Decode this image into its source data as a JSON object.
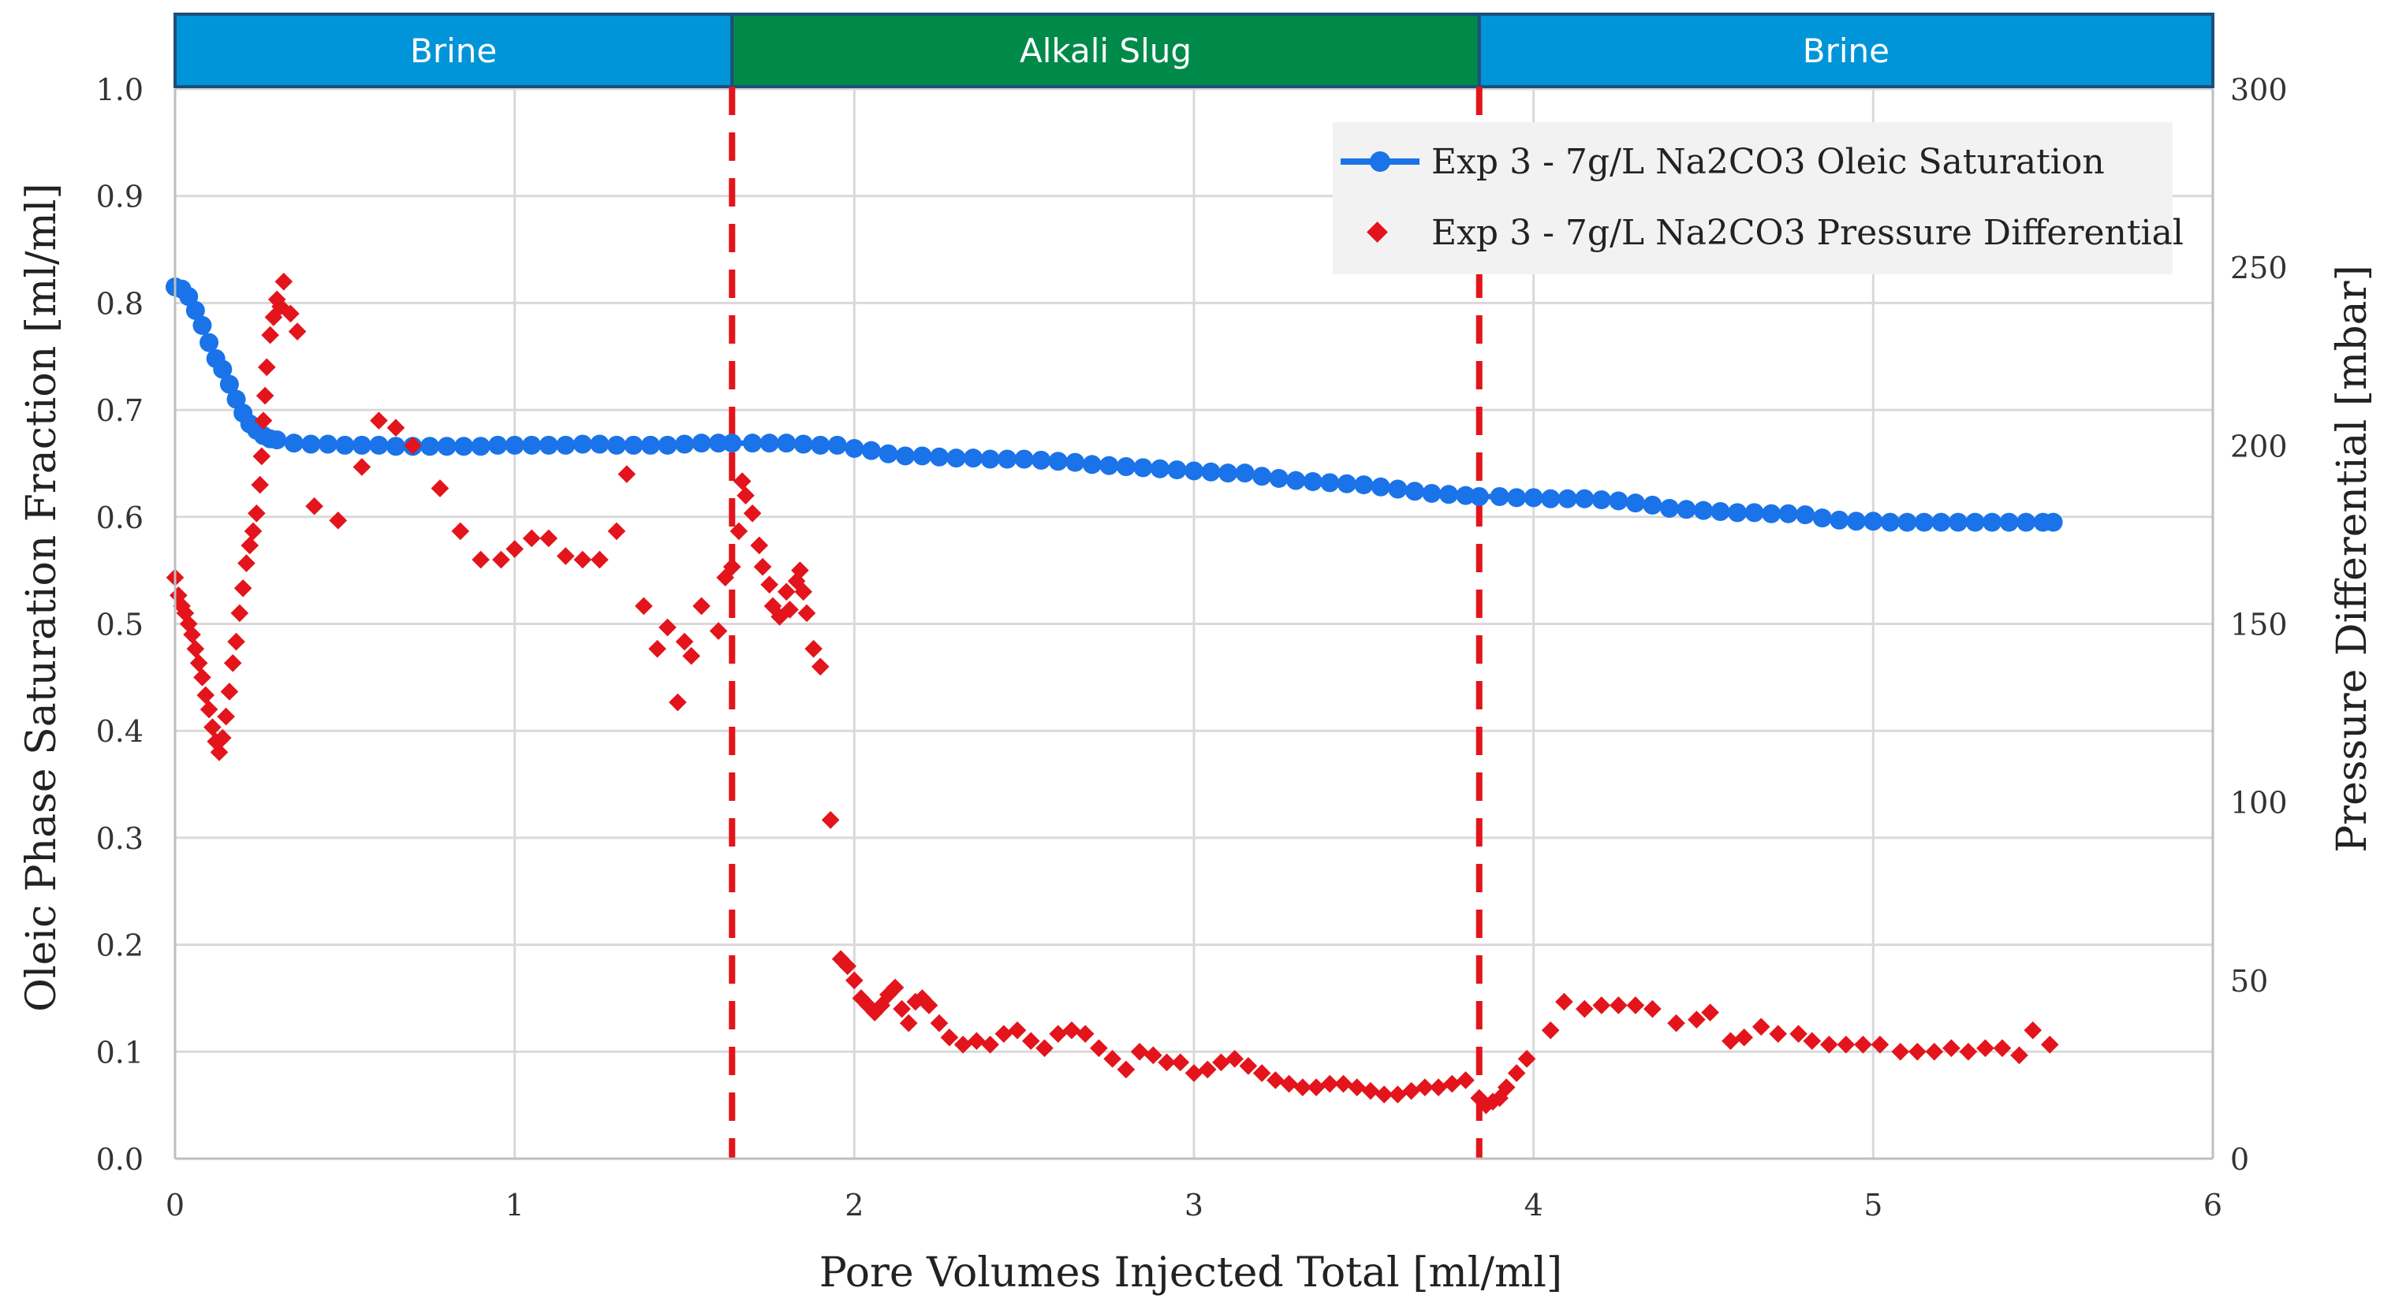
{
  "chart_data": {
    "type": "scatter",
    "xlabel": "Pore Volumes Injected Total [ml/ml]",
    "ylabel": "Oleic Phase Saturation Fraction [ml/ml]",
    "y2label": "Pressure Differential [mbar]",
    "xlim": [
      0,
      6
    ],
    "ylim": [
      0,
      1.0
    ],
    "y2lim": [
      0,
      300
    ],
    "x_ticks": [
      "0",
      "1",
      "2",
      "3",
      "4",
      "5",
      "6"
    ],
    "y_ticks": [
      "0.0",
      "0.1",
      "0.2",
      "0.3",
      "0.4",
      "0.5",
      "0.6",
      "0.7",
      "0.8",
      "0.9",
      "1.0"
    ],
    "y2_ticks": [
      "0",
      "50",
      "100",
      "150",
      "200",
      "250",
      "300"
    ],
    "grid": true,
    "legend_position": "top-right",
    "phases": [
      {
        "label": "Brine",
        "x_start": 0,
        "x_end": 1.64,
        "color": "#0094d8"
      },
      {
        "label": "Alkali Slug",
        "x_start": 1.64,
        "x_end": 3.84,
        "color": "#008a4a"
      },
      {
        "label": "Brine",
        "x_start": 3.84,
        "x_end": 6.0,
        "color": "#0094d8"
      }
    ],
    "phase_boundaries": [
      1.64,
      3.84
    ],
    "series": [
      {
        "name": "Exp 3 - 7g/L Na2CO3 Oleic Saturation",
        "axis": "left",
        "color": "#1a73e8",
        "marker": "circle",
        "line": true,
        "points": [
          [
            0.0,
            0.815
          ],
          [
            0.02,
            0.813
          ],
          [
            0.04,
            0.806
          ],
          [
            0.06,
            0.793
          ],
          [
            0.08,
            0.779
          ],
          [
            0.1,
            0.763
          ],
          [
            0.12,
            0.748
          ],
          [
            0.14,
            0.738
          ],
          [
            0.16,
            0.724
          ],
          [
            0.18,
            0.71
          ],
          [
            0.2,
            0.697
          ],
          [
            0.22,
            0.687
          ],
          [
            0.24,
            0.681
          ],
          [
            0.26,
            0.676
          ],
          [
            0.28,
            0.673
          ],
          [
            0.3,
            0.672
          ],
          [
            0.35,
            0.669
          ],
          [
            0.4,
            0.668
          ],
          [
            0.45,
            0.668
          ],
          [
            0.5,
            0.667
          ],
          [
            0.55,
            0.667
          ],
          [
            0.6,
            0.667
          ],
          [
            0.65,
            0.666
          ],
          [
            0.7,
            0.666
          ],
          [
            0.75,
            0.666
          ],
          [
            0.8,
            0.666
          ],
          [
            0.85,
            0.666
          ],
          [
            0.9,
            0.666
          ],
          [
            0.95,
            0.667
          ],
          [
            1.0,
            0.667
          ],
          [
            1.05,
            0.667
          ],
          [
            1.1,
            0.667
          ],
          [
            1.15,
            0.667
          ],
          [
            1.2,
            0.668
          ],
          [
            1.25,
            0.668
          ],
          [
            1.3,
            0.667
          ],
          [
            1.35,
            0.667
          ],
          [
            1.4,
            0.667
          ],
          [
            1.45,
            0.667
          ],
          [
            1.5,
            0.668
          ],
          [
            1.55,
            0.669
          ],
          [
            1.6,
            0.669
          ],
          [
            1.64,
            0.669
          ],
          [
            1.7,
            0.669
          ],
          [
            1.75,
            0.669
          ],
          [
            1.8,
            0.669
          ],
          [
            1.85,
            0.668
          ],
          [
            1.9,
            0.667
          ],
          [
            1.95,
            0.667
          ],
          [
            2.0,
            0.664
          ],
          [
            2.05,
            0.662
          ],
          [
            2.1,
            0.659
          ],
          [
            2.15,
            0.657
          ],
          [
            2.2,
            0.657
          ],
          [
            2.25,
            0.656
          ],
          [
            2.3,
            0.655
          ],
          [
            2.35,
            0.655
          ],
          [
            2.4,
            0.654
          ],
          [
            2.45,
            0.654
          ],
          [
            2.5,
            0.654
          ],
          [
            2.55,
            0.653
          ],
          [
            2.6,
            0.652
          ],
          [
            2.65,
            0.651
          ],
          [
            2.7,
            0.649
          ],
          [
            2.75,
            0.648
          ],
          [
            2.8,
            0.647
          ],
          [
            2.85,
            0.646
          ],
          [
            2.9,
            0.645
          ],
          [
            2.95,
            0.644
          ],
          [
            3.0,
            0.643
          ],
          [
            3.05,
            0.642
          ],
          [
            3.1,
            0.641
          ],
          [
            3.15,
            0.641
          ],
          [
            3.2,
            0.638
          ],
          [
            3.25,
            0.636
          ],
          [
            3.3,
            0.634
          ],
          [
            3.35,
            0.633
          ],
          [
            3.4,
            0.632
          ],
          [
            3.45,
            0.631
          ],
          [
            3.5,
            0.63
          ],
          [
            3.55,
            0.628
          ],
          [
            3.6,
            0.626
          ],
          [
            3.65,
            0.624
          ],
          [
            3.7,
            0.622
          ],
          [
            3.75,
            0.621
          ],
          [
            3.8,
            0.62
          ],
          [
            3.84,
            0.619
          ],
          [
            3.9,
            0.619
          ],
          [
            3.95,
            0.618
          ],
          [
            4.0,
            0.618
          ],
          [
            4.05,
            0.617
          ],
          [
            4.1,
            0.617
          ],
          [
            4.15,
            0.617
          ],
          [
            4.2,
            0.616
          ],
          [
            4.25,
            0.615
          ],
          [
            4.3,
            0.613
          ],
          [
            4.35,
            0.611
          ],
          [
            4.4,
            0.608
          ],
          [
            4.45,
            0.607
          ],
          [
            4.5,
            0.606
          ],
          [
            4.55,
            0.605
          ],
          [
            4.6,
            0.604
          ],
          [
            4.65,
            0.604
          ],
          [
            4.7,
            0.603
          ],
          [
            4.75,
            0.603
          ],
          [
            4.8,
            0.602
          ],
          [
            4.85,
            0.599
          ],
          [
            4.9,
            0.597
          ],
          [
            4.95,
            0.596
          ],
          [
            5.0,
            0.596
          ],
          [
            5.05,
            0.595
          ],
          [
            5.1,
            0.595
          ],
          [
            5.15,
            0.595
          ],
          [
            5.2,
            0.595
          ],
          [
            5.25,
            0.595
          ],
          [
            5.3,
            0.595
          ],
          [
            5.35,
            0.595
          ],
          [
            5.4,
            0.595
          ],
          [
            5.45,
            0.595
          ],
          [
            5.5,
            0.595
          ],
          [
            5.53,
            0.595
          ]
        ]
      },
      {
        "name": "Exp 3 - 7g/L Na2CO3 Pressure Differential",
        "axis": "right",
        "color": "#e3141b",
        "marker": "diamond",
        "line": false,
        "points": [
          [
            0.0,
            163
          ],
          [
            0.01,
            158
          ],
          [
            0.02,
            155
          ],
          [
            0.03,
            153
          ],
          [
            0.04,
            150
          ],
          [
            0.05,
            147
          ],
          [
            0.06,
            143
          ],
          [
            0.07,
            139
          ],
          [
            0.08,
            135
          ],
          [
            0.09,
            130
          ],
          [
            0.1,
            126
          ],
          [
            0.11,
            121
          ],
          [
            0.12,
            117
          ],
          [
            0.13,
            114
          ],
          [
            0.14,
            118
          ],
          [
            0.15,
            124
          ],
          [
            0.16,
            131
          ],
          [
            0.17,
            139
          ],
          [
            0.18,
            145
          ],
          [
            0.19,
            153
          ],
          [
            0.2,
            160
          ],
          [
            0.21,
            167
          ],
          [
            0.22,
            172
          ],
          [
            0.23,
            176
          ],
          [
            0.24,
            181
          ],
          [
            0.25,
            189
          ],
          [
            0.255,
            197
          ],
          [
            0.26,
            207
          ],
          [
            0.265,
            214
          ],
          [
            0.27,
            222
          ],
          [
            0.28,
            231
          ],
          [
            0.29,
            236
          ],
          [
            0.3,
            241
          ],
          [
            0.31,
            239
          ],
          [
            0.32,
            246
          ],
          [
            0.34,
            237
          ],
          [
            0.36,
            232
          ],
          [
            0.41,
            183
          ],
          [
            0.48,
            179
          ],
          [
            0.55,
            194
          ],
          [
            0.6,
            207
          ],
          [
            0.65,
            205
          ],
          [
            0.7,
            200
          ],
          [
            0.78,
            188
          ],
          [
            0.84,
            176
          ],
          [
            0.9,
            168
          ],
          [
            0.96,
            168
          ],
          [
            1.0,
            171
          ],
          [
            1.05,
            174
          ],
          [
            1.1,
            174
          ],
          [
            1.15,
            169
          ],
          [
            1.2,
            168
          ],
          [
            1.25,
            168
          ],
          [
            1.3,
            176
          ],
          [
            1.33,
            192
          ],
          [
            1.38,
            155
          ],
          [
            1.42,
            143
          ],
          [
            1.45,
            149
          ],
          [
            1.48,
            128
          ],
          [
            1.5,
            145
          ],
          [
            1.52,
            141
          ],
          [
            1.55,
            155
          ],
          [
            1.6,
            148
          ],
          [
            1.62,
            163
          ],
          [
            1.64,
            166
          ],
          [
            1.66,
            176
          ],
          [
            1.67,
            190
          ],
          [
            1.68,
            186
          ],
          [
            1.7,
            181
          ],
          [
            1.72,
            172
          ],
          [
            1.73,
            166
          ],
          [
            1.75,
            161
          ],
          [
            1.76,
            155
          ],
          [
            1.78,
            152
          ],
          [
            1.8,
            159
          ],
          [
            1.81,
            154
          ],
          [
            1.83,
            162
          ],
          [
            1.84,
            165
          ],
          [
            1.85,
            159
          ],
          [
            1.86,
            153
          ],
          [
            1.88,
            143
          ],
          [
            1.9,
            138
          ],
          [
            1.93,
            95
          ],
          [
            1.96,
            56
          ],
          [
            1.98,
            54
          ],
          [
            2.0,
            50
          ],
          [
            2.02,
            45
          ],
          [
            2.04,
            43
          ],
          [
            2.06,
            41
          ],
          [
            2.08,
            43
          ],
          [
            2.1,
            46
          ],
          [
            2.12,
            48
          ],
          [
            2.14,
            42
          ],
          [
            2.16,
            38
          ],
          [
            2.18,
            44
          ],
          [
            2.2,
            45
          ],
          [
            2.22,
            43
          ],
          [
            2.25,
            38
          ],
          [
            2.28,
            34
          ],
          [
            2.32,
            32
          ],
          [
            2.36,
            33
          ],
          [
            2.4,
            32
          ],
          [
            2.44,
            35
          ],
          [
            2.48,
            36
          ],
          [
            2.52,
            33
          ],
          [
            2.56,
            31
          ],
          [
            2.6,
            35
          ],
          [
            2.64,
            36
          ],
          [
            2.68,
            35
          ],
          [
            2.72,
            31
          ],
          [
            2.76,
            28
          ],
          [
            2.8,
            25
          ],
          [
            2.84,
            30
          ],
          [
            2.88,
            29
          ],
          [
            2.92,
            27
          ],
          [
            2.96,
            27
          ],
          [
            3.0,
            24
          ],
          [
            3.04,
            25
          ],
          [
            3.08,
            27
          ],
          [
            3.12,
            28
          ],
          [
            3.16,
            26
          ],
          [
            3.2,
            24
          ],
          [
            3.24,
            22
          ],
          [
            3.28,
            21
          ],
          [
            3.32,
            20
          ],
          [
            3.36,
            20
          ],
          [
            3.4,
            21
          ],
          [
            3.44,
            21
          ],
          [
            3.48,
            20
          ],
          [
            3.52,
            19
          ],
          [
            3.56,
            18
          ],
          [
            3.6,
            18
          ],
          [
            3.64,
            19
          ],
          [
            3.68,
            20
          ],
          [
            3.72,
            20
          ],
          [
            3.76,
            21
          ],
          [
            3.8,
            22
          ],
          [
            3.84,
            17
          ],
          [
            3.86,
            15
          ],
          [
            3.88,
            16
          ],
          [
            3.9,
            17
          ],
          [
            3.92,
            20
          ],
          [
            3.95,
            24
          ],
          [
            3.98,
            28
          ],
          [
            4.05,
            36
          ],
          [
            4.09,
            44
          ],
          [
            4.15,
            42
          ],
          [
            4.2,
            43
          ],
          [
            4.25,
            43
          ],
          [
            4.3,
            43
          ],
          [
            4.35,
            42
          ],
          [
            4.42,
            38
          ],
          [
            4.48,
            39
          ],
          [
            4.52,
            41
          ],
          [
            4.58,
            33
          ],
          [
            4.62,
            34
          ],
          [
            4.67,
            37
          ],
          [
            4.72,
            35
          ],
          [
            4.78,
            35
          ],
          [
            4.82,
            33
          ],
          [
            4.87,
            32
          ],
          [
            4.92,
            32
          ],
          [
            4.97,
            32
          ],
          [
            5.02,
            32
          ],
          [
            5.08,
            30
          ],
          [
            5.13,
            30
          ],
          [
            5.18,
            30
          ],
          [
            5.23,
            31
          ],
          [
            5.28,
            30
          ],
          [
            5.33,
            31
          ],
          [
            5.38,
            31
          ],
          [
            5.43,
            29
          ],
          [
            5.47,
            36
          ],
          [
            5.52,
            32
          ]
        ]
      }
    ]
  }
}
